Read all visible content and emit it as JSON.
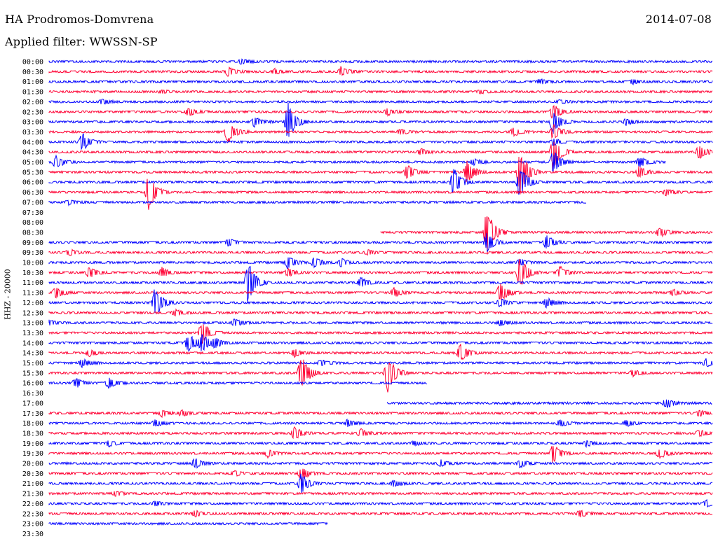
{
  "header": {
    "station": "HA Prodromos-Domvrena",
    "date": "2014-07-08",
    "filter": "Applied filter: WWSSN-SP"
  },
  "chart_data": {
    "type": "line",
    "title": "HA Prodromos-Domvrena",
    "subtitle": "Applied filter: WWSSN-SP",
    "ylabel": "HHZ - 20000",
    "xlabel": "",
    "colors": {
      "even": "#0000ff",
      "odd": "#ff0033"
    },
    "rows": [
      {
        "label": "00:00",
        "present": [
          0.0,
          1.0
        ],
        "events": [
          [
            0.29,
            3
          ]
        ]
      },
      {
        "label": "00:30",
        "present": [
          0.0,
          1.0
        ],
        "events": [
          [
            0.27,
            5
          ],
          [
            0.34,
            3
          ],
          [
            0.44,
            6
          ]
        ]
      },
      {
        "label": "01:00",
        "present": [
          0.0,
          1.0
        ],
        "events": [
          [
            0.74,
            3
          ],
          [
            0.88,
            3
          ]
        ]
      },
      {
        "label": "01:30",
        "present": [
          0.0,
          1.0
        ],
        "events": [
          [
            0.17,
            2
          ],
          [
            0.65,
            2
          ]
        ]
      },
      {
        "label": "02:00",
        "present": [
          0.0,
          1.0
        ],
        "events": [
          [
            0.08,
            3
          ],
          [
            0.77,
            2
          ]
        ]
      },
      {
        "label": "02:30",
        "present": [
          0.0,
          1.0
        ],
        "events": [
          [
            0.21,
            5
          ],
          [
            0.51,
            4
          ],
          [
            0.76,
            10
          ]
        ]
      },
      {
        "label": "03:00",
        "present": [
          0.0,
          1.0
        ],
        "events": [
          [
            0.31,
            6
          ],
          [
            0.36,
            24
          ],
          [
            0.76,
            14
          ],
          [
            0.87,
            4
          ]
        ]
      },
      {
        "label": "03:30",
        "present": [
          0.0,
          1.0
        ],
        "events": [
          [
            0.27,
            14
          ],
          [
            0.53,
            3
          ],
          [
            0.76,
            9
          ],
          [
            0.7,
            5
          ]
        ]
      },
      {
        "label": "04:00",
        "present": [
          0.0,
          1.0
        ],
        "events": [
          [
            0.05,
            11
          ],
          [
            0.76,
            4
          ]
        ]
      },
      {
        "label": "04:30",
        "present": [
          0.0,
          1.0
        ],
        "events": [
          [
            0.56,
            4
          ],
          [
            0.98,
            9
          ],
          [
            0.76,
            22
          ]
        ]
      },
      {
        "label": "05:00",
        "present": [
          0.0,
          0.93
        ],
        "events": [
          [
            0.01,
            8
          ],
          [
            0.64,
            4
          ],
          [
            0.76,
            14
          ],
          [
            0.89,
            7
          ]
        ]
      },
      {
        "label": "05:30",
        "present": [
          0.0,
          1.0
        ],
        "events": [
          [
            0.54,
            9
          ],
          [
            0.63,
            14
          ],
          [
            0.71,
            30
          ],
          [
            0.89,
            7
          ]
        ]
      },
      {
        "label": "06:00",
        "present": [
          0.0,
          1.0
        ],
        "events": [
          [
            0.61,
            18
          ],
          [
            0.71,
            20
          ]
        ]
      },
      {
        "label": "06:30",
        "present": [
          0.0,
          1.0
        ],
        "events": [
          [
            0.15,
            24
          ],
          [
            0.93,
            4
          ]
        ]
      },
      {
        "label": "07:00",
        "present": [
          0.0,
          0.81
        ],
        "events": [
          [
            0.03,
            3
          ]
        ]
      },
      {
        "label": "07:30",
        "present": [
          0.0,
          0.0
        ],
        "events": []
      },
      {
        "label": "08:00",
        "present": [
          0.0,
          0.0
        ],
        "events": []
      },
      {
        "label": "08:30",
        "present": [
          0.5,
          1.0
        ],
        "events": [
          [
            0.66,
            30
          ],
          [
            0.92,
            6
          ]
        ]
      },
      {
        "label": "09:00",
        "present": [
          0.0,
          1.0
        ],
        "events": [
          [
            0.27,
            5
          ],
          [
            0.75,
            9
          ],
          [
            0.66,
            12
          ]
        ]
      },
      {
        "label": "09:30",
        "present": [
          0.0,
          1.0
        ],
        "events": [
          [
            0.03,
            4
          ],
          [
            0.48,
            3
          ]
        ]
      },
      {
        "label": "10:00",
        "present": [
          0.0,
          1.0
        ],
        "events": [
          [
            0.36,
            8
          ],
          [
            0.4,
            7
          ],
          [
            0.44,
            5
          ],
          [
            0.71,
            4
          ]
        ]
      },
      {
        "label": "10:30",
        "present": [
          0.0,
          1.0
        ],
        "events": [
          [
            0.06,
            7
          ],
          [
            0.17,
            6
          ],
          [
            0.36,
            5
          ],
          [
            0.71,
            20
          ],
          [
            0.77,
            8
          ]
        ]
      },
      {
        "label": "11:00",
        "present": [
          0.0,
          1.0
        ],
        "events": [
          [
            0.3,
            26
          ],
          [
            0.47,
            6
          ]
        ]
      },
      {
        "label": "11:30",
        "present": [
          0.0,
          1.0
        ],
        "events": [
          [
            0.01,
            7
          ],
          [
            0.52,
            6
          ],
          [
            0.68,
            12
          ],
          [
            0.94,
            4
          ]
        ]
      },
      {
        "label": "12:00",
        "present": [
          0.0,
          1.0
        ],
        "events": [
          [
            0.16,
            20
          ],
          [
            0.68,
            5
          ],
          [
            0.75,
            6
          ]
        ]
      },
      {
        "label": "12:30",
        "present": [
          0.0,
          1.0
        ],
        "events": [
          [
            0.19,
            4
          ]
        ]
      },
      {
        "label": "13:00",
        "present": [
          0.0,
          1.0
        ],
        "events": [
          [
            0.0,
            3
          ],
          [
            0.28,
            5
          ],
          [
            0.68,
            4
          ]
        ]
      },
      {
        "label": "13:30",
        "present": [
          0.0,
          1.0
        ],
        "events": [
          [
            0.23,
            14
          ]
        ]
      },
      {
        "label": "14:00",
        "present": [
          0.0,
          1.0
        ],
        "events": [
          [
            0.21,
            12
          ],
          [
            0.23,
            10
          ],
          [
            0.25,
            6
          ]
        ]
      },
      {
        "label": "14:30",
        "present": [
          0.0,
          1.0
        ],
        "events": [
          [
            0.06,
            4
          ],
          [
            0.37,
            5
          ],
          [
            0.62,
            12
          ]
        ]
      },
      {
        "label": "15:00",
        "present": [
          0.0,
          1.0
        ],
        "events": [
          [
            0.05,
            5
          ],
          [
            0.41,
            4
          ],
          [
            0.99,
            5
          ]
        ]
      },
      {
        "label": "15:30",
        "present": [
          0.0,
          1.0
        ],
        "events": [
          [
            0.38,
            24
          ],
          [
            0.51,
            24
          ],
          [
            0.88,
            4
          ]
        ]
      },
      {
        "label": "16:00",
        "present": [
          0.0,
          0.57
        ],
        "events": [
          [
            0.04,
            6
          ],
          [
            0.09,
            6
          ]
        ]
      },
      {
        "label": "16:30",
        "present": [
          0.0,
          0.0
        ],
        "events": []
      },
      {
        "label": "17:00",
        "present": [
          0.51,
          1.0
        ],
        "events": [
          [
            0.93,
            6
          ]
        ]
      },
      {
        "label": "17:30",
        "present": [
          0.0,
          1.0
        ],
        "events": [
          [
            0.17,
            4
          ],
          [
            0.2,
            4
          ],
          [
            0.98,
            4
          ]
        ]
      },
      {
        "label": "18:00",
        "present": [
          0.0,
          1.0
        ],
        "events": [
          [
            0.16,
            4
          ],
          [
            0.45,
            4
          ],
          [
            0.77,
            4
          ],
          [
            0.87,
            4
          ]
        ]
      },
      {
        "label": "18:30",
        "present": [
          0.0,
          1.0
        ],
        "events": [
          [
            0.37,
            8
          ],
          [
            0.47,
            5
          ],
          [
            0.98,
            4
          ]
        ]
      },
      {
        "label": "19:00",
        "present": [
          0.0,
          1.0
        ],
        "events": [
          [
            0.09,
            4
          ],
          [
            0.55,
            3
          ],
          [
            0.81,
            4
          ]
        ]
      },
      {
        "label": "19:30",
        "present": [
          0.0,
          1.0
        ],
        "events": [
          [
            0.33,
            5
          ],
          [
            0.76,
            12
          ],
          [
            0.92,
            6
          ]
        ]
      },
      {
        "label": "20:00",
        "present": [
          0.0,
          1.0
        ],
        "events": [
          [
            0.22,
            6
          ],
          [
            0.59,
            4
          ],
          [
            0.71,
            5
          ]
        ]
      },
      {
        "label": "20:30",
        "present": [
          0.0,
          1.0
        ],
        "events": [
          [
            0.38,
            8
          ],
          [
            0.28,
            3
          ]
        ]
      },
      {
        "label": "21:00",
        "present": [
          0.0,
          1.0
        ],
        "events": [
          [
            0.38,
            12
          ],
          [
            0.52,
            4
          ]
        ]
      },
      {
        "label": "21:30",
        "present": [
          0.0,
          1.0
        ],
        "events": [
          [
            0.1,
            3
          ]
        ]
      },
      {
        "label": "22:00",
        "present": [
          0.0,
          1.0
        ],
        "events": [
          [
            0.16,
            3
          ],
          [
            0.99,
            4
          ]
        ]
      },
      {
        "label": "22:30",
        "present": [
          0.0,
          1.0
        ],
        "events": [
          [
            0.22,
            4
          ],
          [
            0.8,
            5
          ]
        ]
      },
      {
        "label": "23:00",
        "present": [
          0.0,
          0.42
        ],
        "events": []
      },
      {
        "label": "23:30",
        "present": [
          0.0,
          0.0
        ],
        "events": []
      }
    ]
  }
}
